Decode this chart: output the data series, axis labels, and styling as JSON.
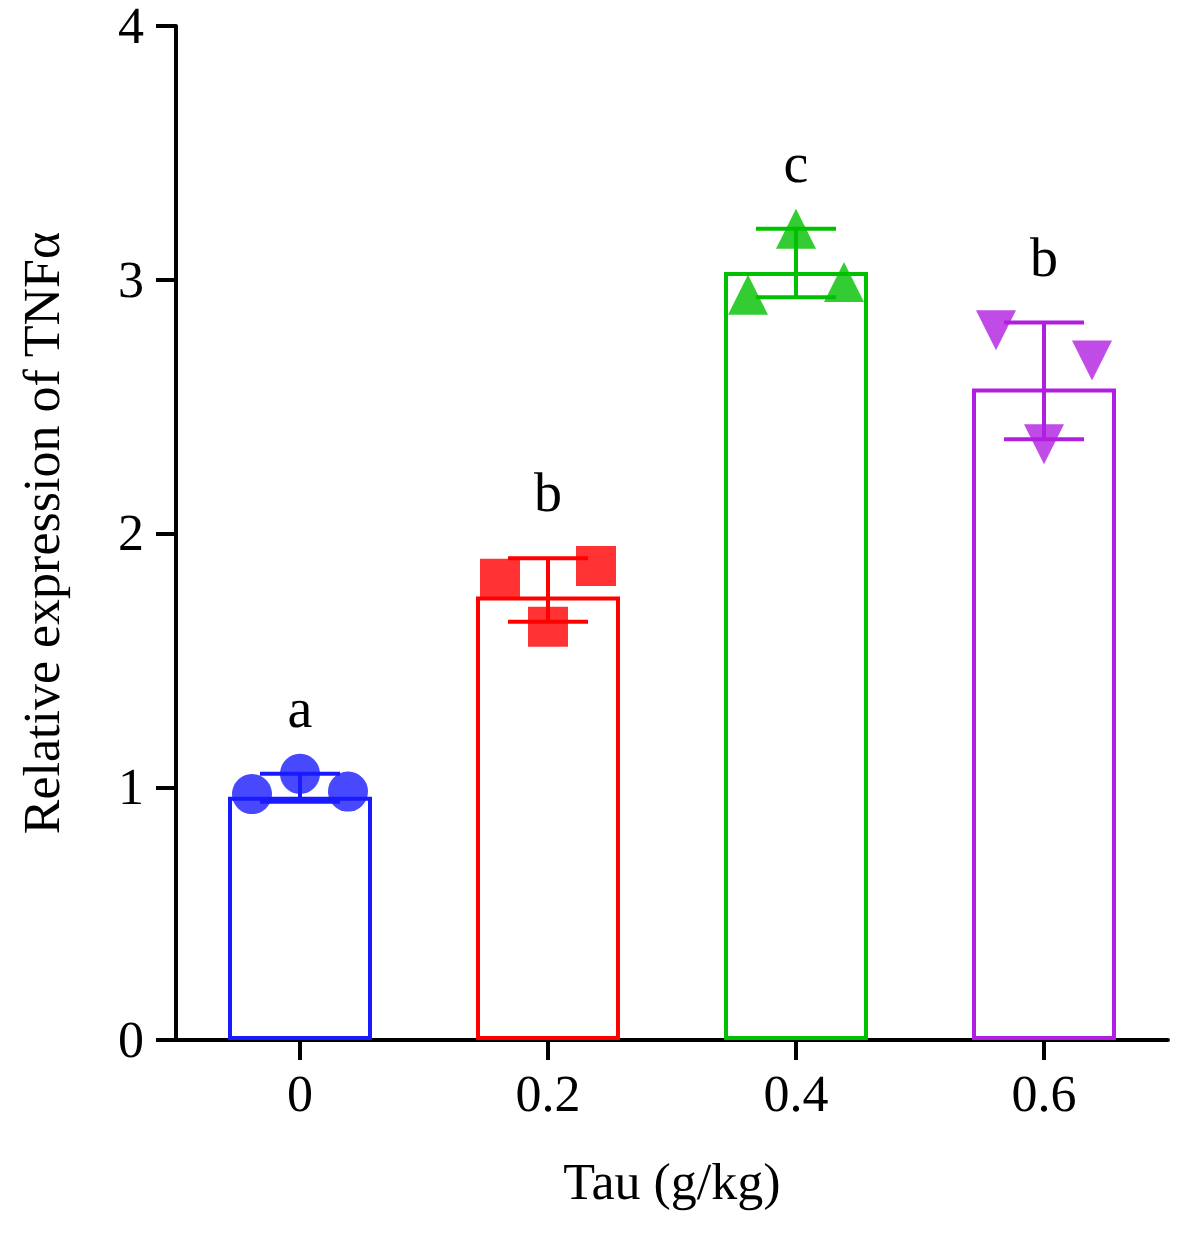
{
  "chart_data": {
    "type": "bar",
    "xlabel": "Tau (g/kg)",
    "ylabel": "Relative expression of TNFα",
    "categories": [
      "0",
      "0.2",
      "0.4",
      "0.6"
    ],
    "values": [
      0.96,
      1.75,
      3.03,
      2.57
    ],
    "colors": [
      "#1a1aff",
      "#ff0000",
      "#00c000",
      "#b01ee0"
    ],
    "errors": [
      [
        0.94,
        1.05
      ],
      [
        1.65,
        1.9
      ],
      [
        2.93,
        3.2
      ],
      [
        2.37,
        2.83
      ]
    ],
    "ylim": [
      0,
      4
    ],
    "yticks": [
      0,
      1,
      2,
      3,
      4
    ],
    "grid": false,
    "series": [
      {
        "type": "scatter",
        "marker": "circle",
        "color": "#1a1aff",
        "x": [
          "0",
          "0",
          "0"
        ],
        "values": [
          0.97,
          1.05,
          0.98
        ]
      },
      {
        "type": "scatter",
        "marker": "square",
        "color": "#ff0000",
        "x": [
          "0.2",
          "0.2",
          "0.2"
        ],
        "values": [
          1.82,
          1.63,
          1.87
        ]
      },
      {
        "type": "scatter",
        "marker": "triangle",
        "color": "#00c000",
        "x": [
          "0.4",
          "0.4",
          "0.4"
        ],
        "values": [
          2.94,
          3.2,
          2.99
        ]
      },
      {
        "type": "scatter",
        "marker": "triangle-down",
        "color": "#b01ee0",
        "x": [
          "0.6",
          "0.6",
          "0.6"
        ],
        "values": [
          2.8,
          2.35,
          2.68
        ]
      }
    ],
    "annotations": [
      "a",
      "b",
      "c",
      "b"
    ]
  }
}
